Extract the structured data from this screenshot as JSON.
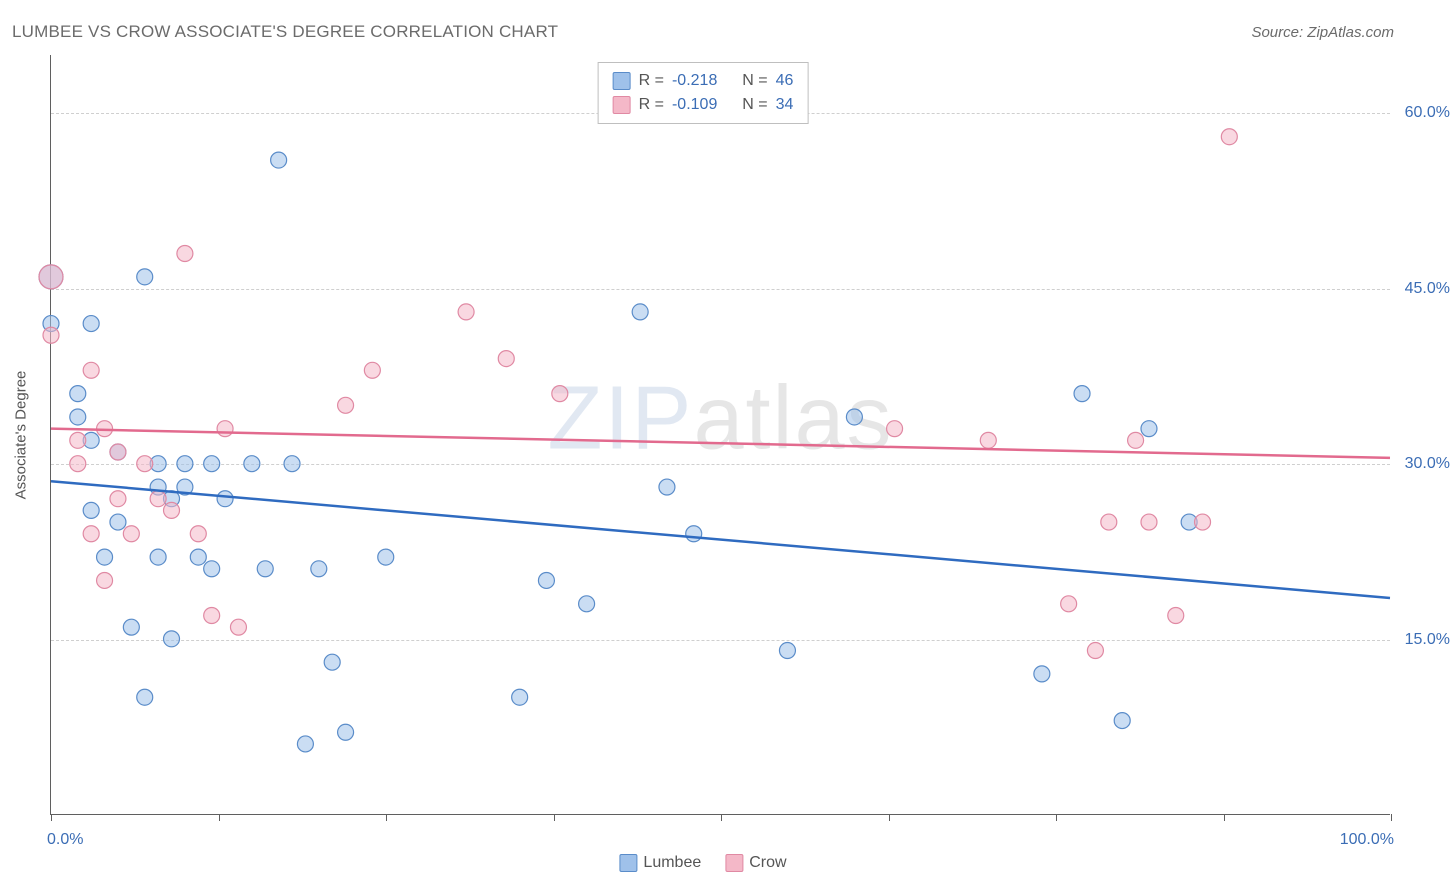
{
  "title": "LUMBEE VS CROW ASSOCIATE'S DEGREE CORRELATION CHART",
  "source": "Source: ZipAtlas.com",
  "watermark": {
    "part1": "ZIP",
    "part2": "atlas"
  },
  "yaxis_title": "Associate's Degree",
  "chart": {
    "type": "scatter+regression",
    "xlim": [
      0,
      100
    ],
    "ylim": [
      0,
      65
    ],
    "x_ticks": [
      0,
      12.5,
      25,
      37.5,
      50,
      62.5,
      75,
      87.5,
      100
    ],
    "x_min_label": "0.0%",
    "x_max_label": "100.0%",
    "y_gridlines": [
      15,
      30,
      45,
      60
    ],
    "y_labels": [
      "15.0%",
      "30.0%",
      "45.0%",
      "60.0%"
    ],
    "grid_color": "#cfcfcf",
    "axis_color": "#5f5f5f",
    "label_color": "#3b6db5",
    "background_color": "#ffffff",
    "marker_radius": 8,
    "marker_radius_large": 12,
    "marker_opacity": 0.55,
    "line_width": 2.5,
    "series": [
      {
        "name": "Lumbee",
        "color_fill": "#9fc1ea",
        "color_stroke": "#5a8cc9",
        "line_color": "#2f6bc0",
        "R": "-0.218",
        "N": "46",
        "regression": {
          "x1": 0,
          "y1": 28.5,
          "x2": 100,
          "y2": 18.5
        },
        "points": [
          {
            "x": 0,
            "y": 46,
            "r": 12
          },
          {
            "x": 0,
            "y": 42
          },
          {
            "x": 2,
            "y": 34
          },
          {
            "x": 2,
            "y": 36
          },
          {
            "x": 3,
            "y": 26
          },
          {
            "x": 3,
            "y": 32
          },
          {
            "x": 3,
            "y": 42
          },
          {
            "x": 4,
            "y": 22
          },
          {
            "x": 5,
            "y": 31
          },
          {
            "x": 5,
            "y": 25
          },
          {
            "x": 6,
            "y": 16
          },
          {
            "x": 7,
            "y": 46
          },
          {
            "x": 7,
            "y": 10
          },
          {
            "x": 8,
            "y": 30
          },
          {
            "x": 8,
            "y": 22
          },
          {
            "x": 8,
            "y": 28
          },
          {
            "x": 9,
            "y": 27
          },
          {
            "x": 9,
            "y": 15
          },
          {
            "x": 10,
            "y": 28
          },
          {
            "x": 10,
            "y": 30
          },
          {
            "x": 11,
            "y": 22
          },
          {
            "x": 12,
            "y": 30
          },
          {
            "x": 12,
            "y": 21
          },
          {
            "x": 13,
            "y": 27
          },
          {
            "x": 15,
            "y": 30
          },
          {
            "x": 16,
            "y": 21
          },
          {
            "x": 17,
            "y": 56
          },
          {
            "x": 18,
            "y": 30
          },
          {
            "x": 19,
            "y": 6
          },
          {
            "x": 20,
            "y": 21
          },
          {
            "x": 21,
            "y": 13
          },
          {
            "x": 22,
            "y": 7
          },
          {
            "x": 25,
            "y": 22
          },
          {
            "x": 35,
            "y": 10
          },
          {
            "x": 37,
            "y": 20
          },
          {
            "x": 40,
            "y": 18
          },
          {
            "x": 44,
            "y": 43
          },
          {
            "x": 46,
            "y": 28
          },
          {
            "x": 48,
            "y": 24
          },
          {
            "x": 55,
            "y": 14
          },
          {
            "x": 60,
            "y": 34
          },
          {
            "x": 74,
            "y": 12
          },
          {
            "x": 77,
            "y": 36
          },
          {
            "x": 80,
            "y": 8
          },
          {
            "x": 82,
            "y": 33
          },
          {
            "x": 85,
            "y": 25
          }
        ]
      },
      {
        "name": "Crow",
        "color_fill": "#f4b8c8",
        "color_stroke": "#e089a3",
        "line_color": "#e26a8e",
        "R": "-0.109",
        "N": "34",
        "regression": {
          "x1": 0,
          "y1": 33,
          "x2": 100,
          "y2": 30.5
        },
        "points": [
          {
            "x": 0,
            "y": 46,
            "r": 12
          },
          {
            "x": 0,
            "y": 41
          },
          {
            "x": 2,
            "y": 32
          },
          {
            "x": 2,
            "y": 30
          },
          {
            "x": 3,
            "y": 38
          },
          {
            "x": 3,
            "y": 24
          },
          {
            "x": 4,
            "y": 20
          },
          {
            "x": 4,
            "y": 33
          },
          {
            "x": 5,
            "y": 27
          },
          {
            "x": 5,
            "y": 31
          },
          {
            "x": 6,
            "y": 24
          },
          {
            "x": 7,
            "y": 30
          },
          {
            "x": 8,
            "y": 27
          },
          {
            "x": 9,
            "y": 26
          },
          {
            "x": 10,
            "y": 48
          },
          {
            "x": 11,
            "y": 24
          },
          {
            "x": 12,
            "y": 17
          },
          {
            "x": 13,
            "y": 33
          },
          {
            "x": 14,
            "y": 16
          },
          {
            "x": 22,
            "y": 35
          },
          {
            "x": 24,
            "y": 38
          },
          {
            "x": 31,
            "y": 43
          },
          {
            "x": 34,
            "y": 39
          },
          {
            "x": 38,
            "y": 36
          },
          {
            "x": 63,
            "y": 33
          },
          {
            "x": 70,
            "y": 32
          },
          {
            "x": 76,
            "y": 18
          },
          {
            "x": 78,
            "y": 14
          },
          {
            "x": 79,
            "y": 25
          },
          {
            "x": 81,
            "y": 32
          },
          {
            "x": 82,
            "y": 25
          },
          {
            "x": 84,
            "y": 17
          },
          {
            "x": 86,
            "y": 25
          },
          {
            "x": 88,
            "y": 58
          }
        ]
      }
    ]
  },
  "legend_top_labels": {
    "R": "R =",
    "N": "N ="
  },
  "legend_bottom": [
    "Lumbee",
    "Crow"
  ]
}
